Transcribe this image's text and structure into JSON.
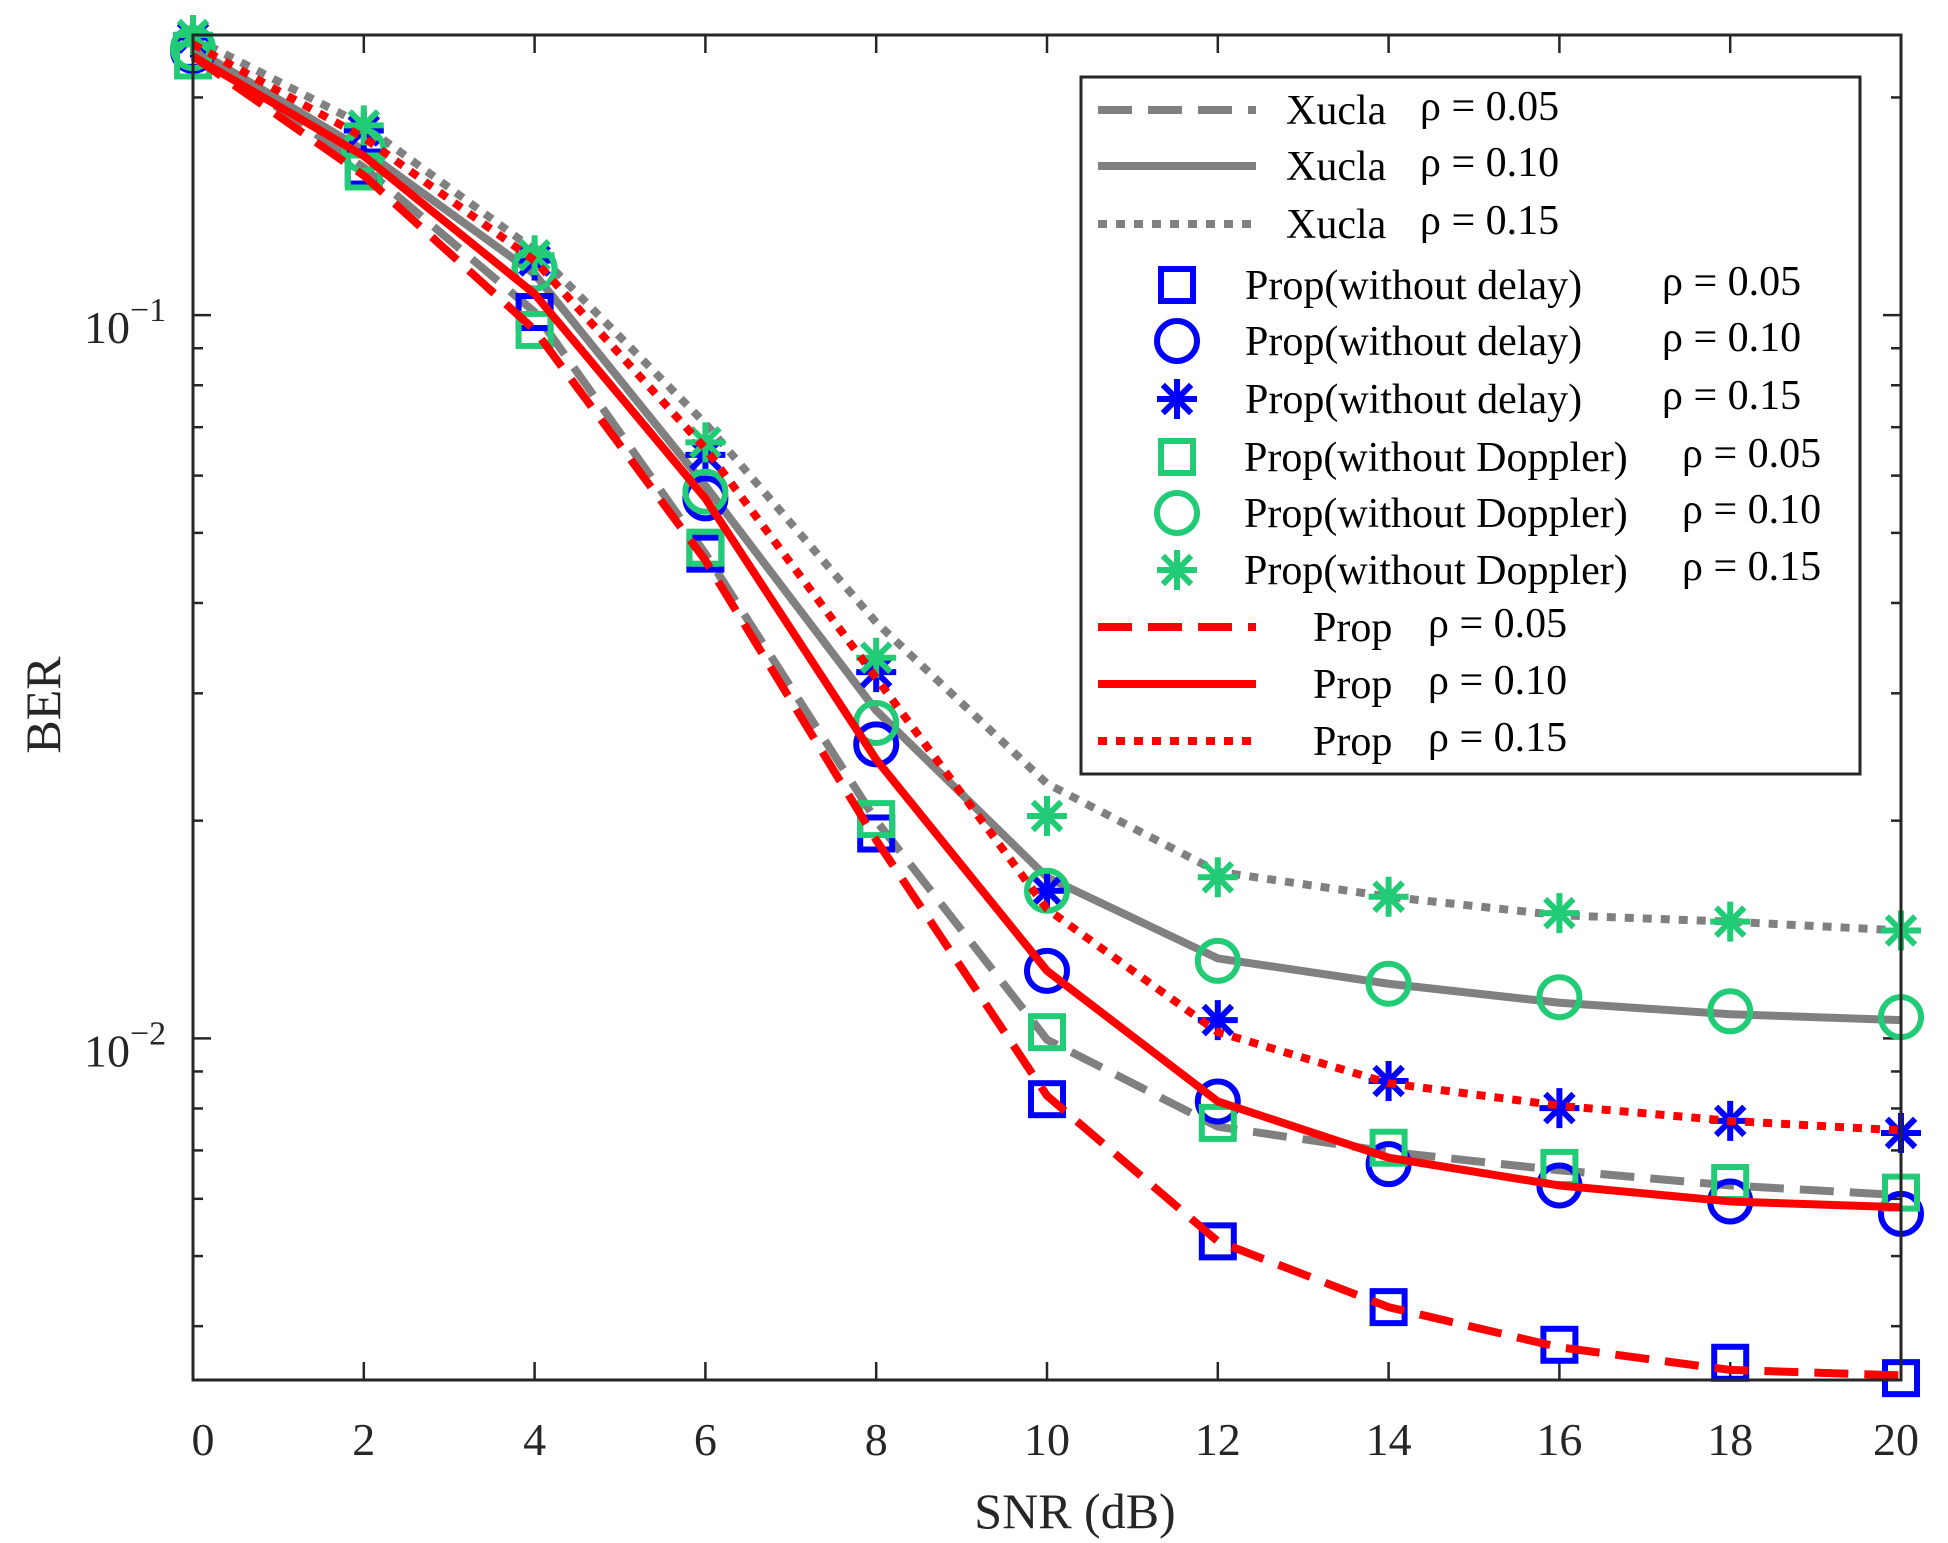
{
  "chart_data": {
    "type": "line",
    "title": "",
    "xlabel": "SNR (dB)",
    "ylabel": "BER",
    "yscale": "log",
    "xlim": [
      0,
      20
    ],
    "ylim": [
      0.00337,
      0.244
    ],
    "x": [
      0,
      2,
      4,
      6,
      8,
      10,
      12,
      14,
      16,
      18,
      20
    ],
    "xticks": [
      "0",
      "2",
      "4",
      "6",
      "8",
      "10",
      "12",
      "14",
      "16",
      "18",
      "20"
    ],
    "yticks": [
      {
        "value": 0.1,
        "base": "10",
        "exp": "−1"
      },
      {
        "value": 0.01,
        "base": "10",
        "exp": "−2"
      }
    ],
    "legend_position": "top-right",
    "series": [
      {
        "name": "Xucla",
        "rho": "ρ = 0.05",
        "color": "#808080",
        "line": "dashed",
        "marker": "none",
        "values": [
          0.234,
          0.16,
          0.101,
          0.0468,
          0.02,
          0.00996,
          0.00755,
          0.00697,
          0.00657,
          0.00626,
          0.00607
        ]
      },
      {
        "name": "Xucla",
        "rho": "ρ = 0.10",
        "color": "#808080",
        "line": "solid",
        "marker": "none",
        "values": [
          0.234,
          0.169,
          0.114,
          0.0581,
          0.0284,
          0.0167,
          0.0129,
          0.0119,
          0.0112,
          0.0108,
          0.0106
        ]
      },
      {
        "name": "Xucla",
        "rho": "ρ = 0.15",
        "color": "#808080",
        "line": "dotted",
        "marker": "none",
        "values": [
          0.242,
          0.183,
          0.123,
          0.0708,
          0.0376,
          0.0225,
          0.017,
          0.0157,
          0.0148,
          0.0145,
          0.0141
        ]
      },
      {
        "name": "Prop(without delay)",
        "rho": "ρ = 0.05",
        "color": "#0000ff",
        "line": "none",
        "marker": "square",
        "values": [
          0.232,
          0.16,
          0.101,
          0.0468,
          0.0192,
          0.00824,
          0.00524,
          0.00425,
          0.00377,
          0.00356,
          0.00339
        ]
      },
      {
        "name": "Prop(without delay)",
        "rho": "ρ = 0.10",
        "color": "#0000ff",
        "line": "none",
        "marker": "circle",
        "values": [
          0.232,
          0.169,
          0.116,
          0.0558,
          0.0255,
          0.0124,
          0.00818,
          0.0067,
          0.00626,
          0.00595,
          0.00572
        ]
      },
      {
        "name": "Prop(without delay)",
        "rho": "ρ = 0.15",
        "color": "#0000ff",
        "line": "none",
        "marker": "star",
        "values": [
          0.242,
          0.18,
          0.119,
          0.0641,
          0.0321,
          0.016,
          0.0106,
          0.00873,
          0.00801,
          0.00769,
          0.0074
        ]
      },
      {
        "name": "Prop(without Doppler)",
        "rho": "ρ = 0.05",
        "color": "#22cc77",
        "line": "none",
        "marker": "square",
        "values": [
          0.225,
          0.158,
          0.0954,
          0.0477,
          0.0201,
          0.0102,
          0.00764,
          0.00706,
          0.00662,
          0.00631,
          0.00612
        ]
      },
      {
        "name": "Prop(without Doppler)",
        "rho": "ρ = 0.10",
        "color": "#22cc77",
        "line": "none",
        "marker": "circle",
        "values": [
          0.234,
          0.169,
          0.116,
          0.057,
          0.0273,
          0.016,
          0.0128,
          0.0119,
          0.0114,
          0.0109,
          0.0107
        ]
      },
      {
        "name": "Prop(without Doppler)",
        "rho": "ρ = 0.15",
        "color": "#22cc77",
        "line": "none",
        "marker": "star",
        "values": [
          0.244,
          0.183,
          0.121,
          0.0667,
          0.0336,
          0.0203,
          0.0167,
          0.0157,
          0.0149,
          0.0145,
          0.0141
        ]
      },
      {
        "name": "Prop",
        "rho": "ρ = 0.05",
        "color": "#ff0000",
        "line": "dashed",
        "marker": "none",
        "values": [
          0.228,
          0.156,
          0.0954,
          0.0458,
          0.0188,
          0.00833,
          0.00524,
          0.00425,
          0.00374,
          0.00348,
          0.00342
        ]
      },
      {
        "name": "Prop",
        "rho": "ρ = 0.10",
        "color": "#ff0000",
        "line": "solid",
        "marker": "none",
        "values": [
          0.228,
          0.166,
          0.107,
          0.0558,
          0.0243,
          0.0124,
          0.00818,
          0.00684,
          0.00626,
          0.00595,
          0.00584
        ]
      },
      {
        "name": "Prop",
        "rho": "ρ = 0.15",
        "color": "#ff0000",
        "line": "dotted",
        "marker": "none",
        "values": [
          0.237,
          0.176,
          0.119,
          0.0654,
          0.0315,
          0.0151,
          0.0102,
          0.00867,
          0.00807,
          0.00769,
          0.00746
        ]
      }
    ]
  }
}
